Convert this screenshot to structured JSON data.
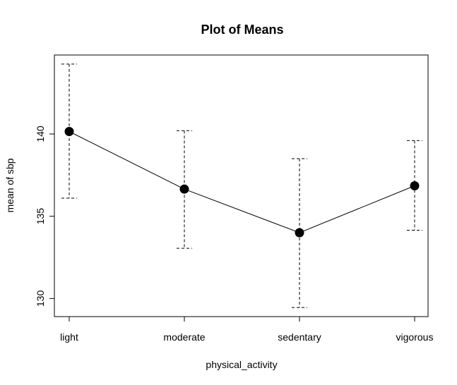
{
  "chart_data": {
    "type": "line",
    "title": "Plot of Means",
    "xlabel": "physical_activity",
    "ylabel": "mean of sbp",
    "categories": [
      "light",
      "moderate",
      "sedentary",
      "vigorous"
    ],
    "means": [
      140.15,
      136.65,
      134.0,
      136.85
    ],
    "lower": [
      136.1,
      133.05,
      129.45,
      134.15
    ],
    "upper": [
      144.25,
      140.2,
      138.5,
      139.6
    ],
    "y_ticks": [
      130,
      135,
      140
    ],
    "ylim": [
      128.9,
      144.8
    ],
    "grid": false,
    "legend": "none",
    "error_bar_style": "dashed"
  }
}
